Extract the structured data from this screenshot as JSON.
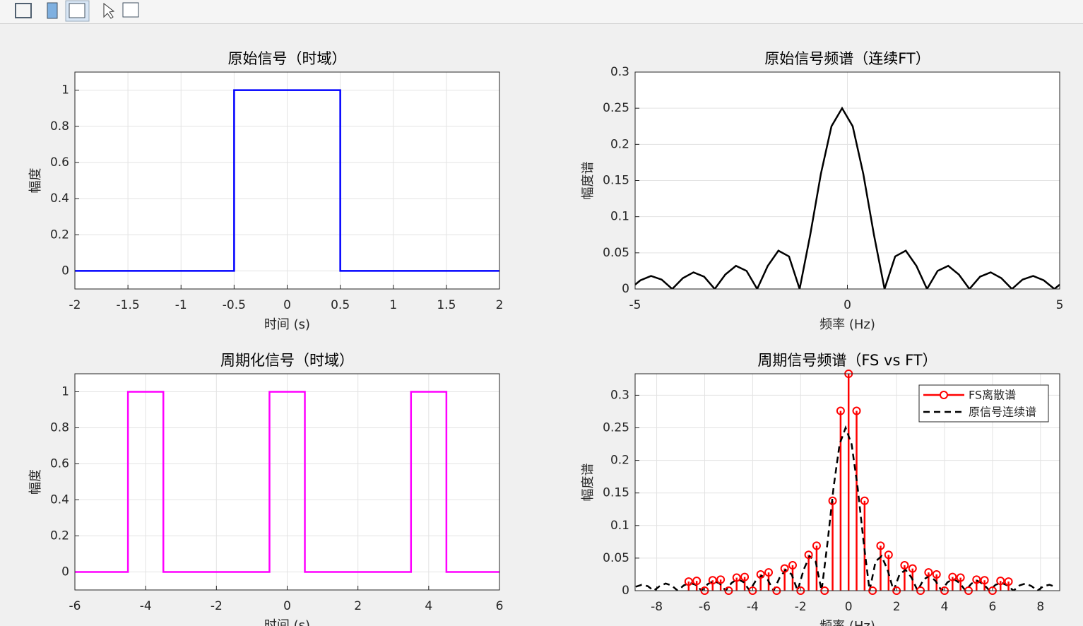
{
  "chart_data": [
    {
      "type": "line",
      "title": "原始信号（时域）",
      "xlabel": "时间 (s)",
      "ylabel": "幅度",
      "xlim": [
        -2,
        2
      ],
      "ylim": [
        -0.1,
        1.1
      ],
      "xticks": [
        -2,
        -1.5,
        -1,
        -0.5,
        0,
        0.5,
        1,
        1.5,
        2
      ],
      "yticks": [
        0,
        0.2,
        0.4,
        0.6,
        0.8,
        1
      ],
      "grid": true,
      "series": [
        {
          "color": "#0000ff",
          "x": [
            -2,
            -0.5,
            -0.5,
            0.5,
            0.5,
            2
          ],
          "values": [
            0,
            0,
            1,
            1,
            0,
            0
          ]
        }
      ]
    },
    {
      "type": "line",
      "title": "原始信号频谱（连续FT）",
      "xlabel": "频率 (Hz)",
      "ylabel": "幅度谱",
      "xlim": [
        -5,
        5
      ],
      "ylim": [
        0,
        0.3
      ],
      "xticks": [
        -5,
        0,
        5
      ],
      "yticks": [
        0,
        0.05,
        0.1,
        0.15,
        0.2,
        0.25,
        0.3
      ],
      "grid": true,
      "series": [
        {
          "color": "#000000",
          "x": [
            -5,
            -4.875,
            -4.625,
            -4.375,
            -4.125,
            -3.875,
            -3.625,
            -3.375,
            -3.125,
            -2.875,
            -2.625,
            -2.375,
            -2.125,
            -1.875,
            -1.625,
            -1.375,
            -1.125,
            -0.875,
            -0.625,
            -0.375,
            -0.125,
            0.125,
            0.375,
            0.625,
            0.875,
            1.125,
            1.375,
            1.625,
            1.875,
            2.125,
            2.375,
            2.625,
            2.875,
            3.125,
            3.375,
            3.625,
            3.875,
            4.125,
            4.375,
            4.625,
            4.875,
            5
          ],
          "values": [
            0.006,
            0.012,
            0.018,
            0.013,
            0,
            0.015,
            0.023,
            0.017,
            0,
            0.02,
            0.032,
            0.025,
            0,
            0.032,
            0.053,
            0.045,
            0,
            0.075,
            0.159,
            0.225,
            0.25,
            0.225,
            0.159,
            0.075,
            0,
            0.045,
            0.053,
            0.032,
            0,
            0.025,
            0.032,
            0.02,
            0,
            0.017,
            0.023,
            0.015,
            0,
            0.013,
            0.018,
            0.012,
            0,
            0.006
          ]
        }
      ]
    },
    {
      "type": "line",
      "title": "周期化信号（时域）",
      "xlabel": "时间 (s)",
      "ylabel": "幅度",
      "xlim": [
        -6,
        6
      ],
      "ylim": [
        -0.1,
        1.1
      ],
      "xticks": [
        -6,
        -4,
        -2,
        0,
        2,
        4,
        6
      ],
      "yticks": [
        0,
        0.2,
        0.4,
        0.6,
        0.8,
        1
      ],
      "grid": true,
      "series": [
        {
          "color": "#ff00ff",
          "x": [
            -6,
            -4.5,
            -4.5,
            -3.5,
            -3.5,
            -0.5,
            -0.5,
            0.5,
            0.5,
            3.5,
            3.5,
            4.5,
            4.5,
            6
          ],
          "values": [
            0,
            0,
            1,
            1,
            0,
            0,
            1,
            1,
            0,
            0,
            1,
            1,
            0,
            0
          ]
        }
      ]
    },
    {
      "type": "stem",
      "title": "周期信号频谱（FS vs FT）",
      "xlabel": "频率 (Hz)",
      "ylabel": "幅度谱",
      "xlim": [
        -8.9,
        8.8
      ],
      "ylim": [
        0,
        0.333
      ],
      "xticks": [
        -8,
        -6,
        -4,
        -2,
        0,
        2,
        4,
        6,
        8
      ],
      "yticks": [
        0,
        0.05,
        0.1,
        0.15,
        0.2,
        0.25,
        0.3
      ],
      "grid": true,
      "legend": "upper right",
      "series": [
        {
          "name": "FS离散谱",
          "type": "stem",
          "color": "#ff0000",
          "x": [
            -6.667,
            -6.333,
            -6,
            -5.667,
            -5.333,
            -5,
            -4.667,
            -4.333,
            -4,
            -3.667,
            -3.333,
            -3,
            -2.667,
            -2.333,
            -2,
            -1.667,
            -1.333,
            -1,
            -0.667,
            -0.333,
            0,
            0.333,
            0.667,
            1,
            1.333,
            1.667,
            2,
            2.333,
            2.667,
            3,
            3.333,
            3.667,
            4,
            4.333,
            4.667,
            5,
            5.333,
            5.667,
            6,
            6.333,
            6.667
          ],
          "values": [
            0.014,
            0.015,
            0,
            0.016,
            0.017,
            0,
            0.02,
            0.021,
            0,
            0.025,
            0.028,
            0,
            0.034,
            0.039,
            0,
            0.055,
            0.069,
            0,
            0.138,
            0.276,
            0.333,
            0.276,
            0.138,
            0,
            0.069,
            0.055,
            0,
            0.039,
            0.034,
            0,
            0.028,
            0.025,
            0,
            0.021,
            0.02,
            0,
            0.017,
            0.016,
            0,
            0.015,
            0.014
          ]
        },
        {
          "name": "原信号连续谱",
          "type": "line",
          "linestyle": "dashed",
          "color": "#000000",
          "x": [
            -8.875,
            -8.625,
            -8.375,
            -8.125,
            -7.875,
            -7.625,
            -7.375,
            -7.125,
            -6.875,
            -6.625,
            -6.375,
            -6.125,
            -5.875,
            -5.625,
            -5.375,
            -5.125,
            -4.875,
            -4.625,
            -4.375,
            -4.125,
            -3.875,
            -3.625,
            -3.375,
            -3.125,
            -2.875,
            -2.625,
            -2.375,
            -2.125,
            -1.875,
            -1.625,
            -1.375,
            -1.125,
            -0.875,
            -0.625,
            -0.375,
            -0.125,
            0.125,
            0.375,
            0.625,
            0.875,
            1.125,
            1.375,
            1.625,
            1.875,
            2.125,
            2.375,
            2.625,
            2.875,
            3.125,
            3.375,
            3.625,
            3.875,
            4.125,
            4.375,
            4.625,
            4.875,
            5.125,
            5.375,
            5.625,
            5.875,
            6.125,
            6.375,
            6.625,
            6.875,
            7.125,
            7.375,
            7.625,
            7.875,
            8.125,
            8.375,
            8.625
          ],
          "values": [
            0.006,
            0.009,
            0.007,
            0,
            0.007,
            0.011,
            0.008,
            0,
            0.008,
            0.012,
            0.009,
            0,
            0.01,
            0.015,
            0.011,
            0,
            0.012,
            0.018,
            0.013,
            0,
            0.015,
            0.023,
            0.017,
            0,
            0.02,
            0.032,
            0.025,
            0,
            0.032,
            0.053,
            0.045,
            0,
            0.075,
            0.159,
            0.225,
            0.25,
            0.225,
            0.159,
            0.075,
            0,
            0.045,
            0.053,
            0.032,
            0,
            0.025,
            0.032,
            0.02,
            0,
            0.017,
            0.023,
            0.015,
            0,
            0.013,
            0.018,
            0.012,
            0,
            0.011,
            0.015,
            0.01,
            0,
            0.009,
            0.012,
            0.008,
            0,
            0.008,
            0.011,
            0.007,
            0,
            0.007,
            0.009,
            0.006
          ]
        }
      ]
    }
  ]
}
